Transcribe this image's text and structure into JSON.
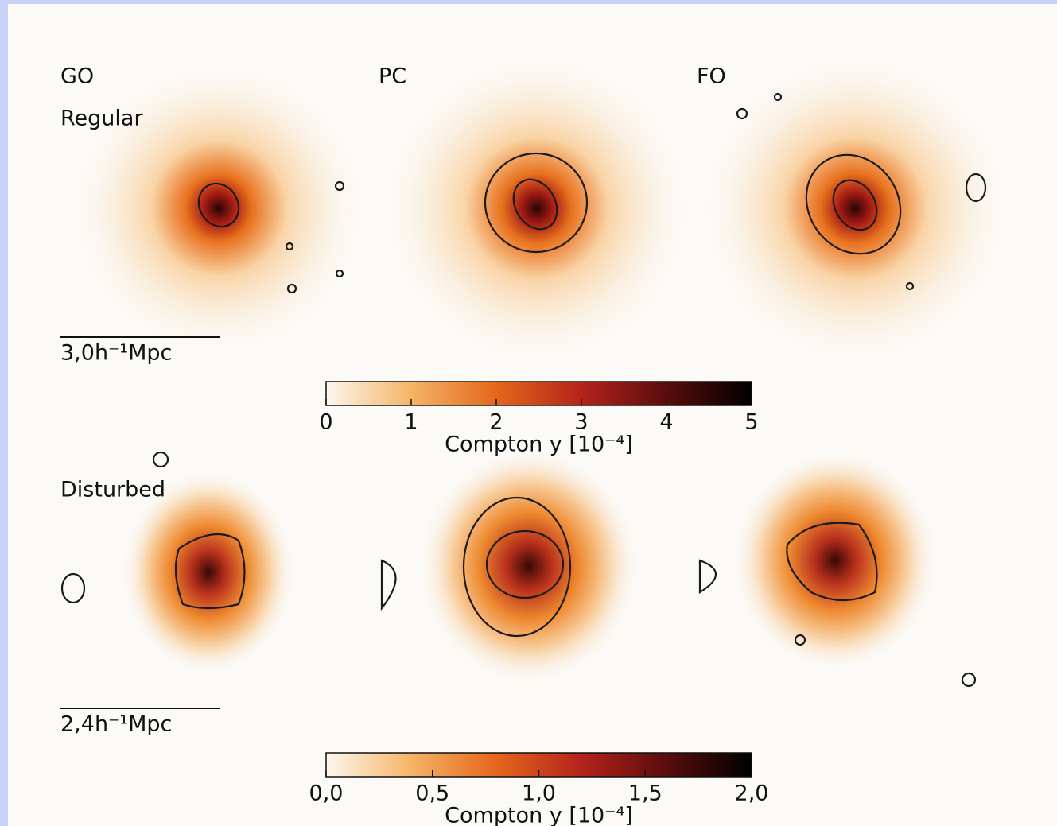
{
  "columns": [
    "GO",
    "PC",
    "FO"
  ],
  "rows": [
    {
      "label": "Regular",
      "scale_bar": "3,0h⁻¹Mpc",
      "colorbar": {
        "lim": [
          0,
          5
        ],
        "ticks": [
          0,
          1,
          2,
          3,
          4,
          5
        ],
        "label": "Compton y [10⁻⁴]"
      }
    },
    {
      "label": "Disturbed",
      "scale_bar": "2,4h⁻¹Mpc",
      "colorbar": {
        "lim": [
          0,
          2
        ],
        "ticks": [
          {
            "value": 0,
            "label": "0,0"
          },
          {
            "value": 0.5,
            "label": "0,5"
          },
          {
            "value": 1,
            "label": "1,0"
          },
          {
            "value": 1.5,
            "label": "1,5"
          },
          {
            "value": 2,
            "label": "2,0"
          }
        ],
        "label": "Compton y [10⁻⁴]"
      }
    }
  ]
}
